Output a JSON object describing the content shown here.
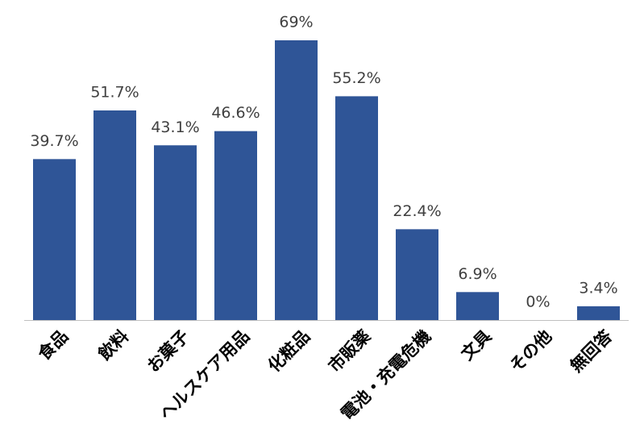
{
  "chart_data": {
    "type": "bar",
    "categories": [
      "食品",
      "飲料",
      "お菓子",
      "ヘルスケア用品",
      "化粧品",
      "市販薬",
      "電池・充電危機",
      "文具",
      "その他",
      "無回答"
    ],
    "values": [
      39.7,
      51.7,
      43.1,
      46.6,
      69,
      55.2,
      22.4,
      6.9,
      0,
      3.4
    ],
    "value_labels": [
      "39.7%",
      "51.7%",
      "43.1%",
      "46.6%",
      "69%",
      "55.2%",
      "22.4%",
      "6.9%",
      "0%",
      "3.4%"
    ],
    "color": "#2f5597"
  }
}
